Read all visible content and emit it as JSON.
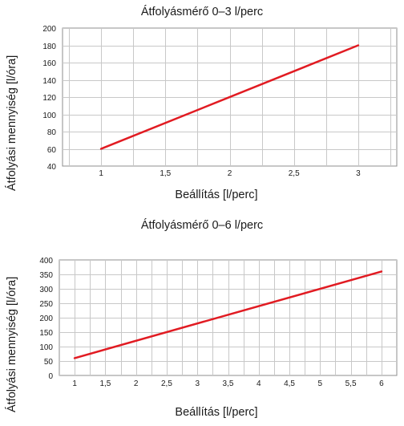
{
  "chart_data": [
    {
      "type": "line",
      "title": "Átfolyásmérő 0–3 l/perc",
      "xlabel": "Beállítás [l/perc]",
      "ylabel": "Átfolyási mennyiség [l/óra]",
      "x_ticks": [
        "1",
        "1,5",
        "2",
        "2,5",
        "3"
      ],
      "x_tick_values": [
        1,
        1.5,
        2,
        2.5,
        3
      ],
      "y_ticks": [
        "40",
        "60",
        "80",
        "100",
        "120",
        "140",
        "160",
        "180",
        "200"
      ],
      "y_tick_values": [
        40,
        60,
        80,
        100,
        120,
        140,
        160,
        180,
        200
      ],
      "xlim": [
        0.7,
        3.3
      ],
      "ylim": [
        40,
        200
      ],
      "x_minor_step": 0.25,
      "grid": true,
      "line_color": "#e11b22",
      "grid_color": "#c8c8c8",
      "series": [
        {
          "x": [
            1,
            3
          ],
          "y": [
            60,
            180
          ]
        }
      ]
    },
    {
      "type": "line",
      "title": "Átfolyásmérő 0–6 l/perc",
      "xlabel": "Beállítás [l/perc]",
      "ylabel": "Átfolyási mennyiség [l/óra]",
      "x_ticks": [
        "1",
        "1,5",
        "2",
        "2,5",
        "3",
        "3,5",
        "4",
        "4,5",
        "5",
        "5,5",
        "6"
      ],
      "x_tick_values": [
        1,
        1.5,
        2,
        2.5,
        3,
        3.5,
        4,
        4.5,
        5,
        5.5,
        6
      ],
      "y_ticks": [
        "0",
        "50",
        "100",
        "150",
        "200",
        "250",
        "300",
        "350",
        "400"
      ],
      "y_tick_values": [
        0,
        50,
        100,
        150,
        200,
        250,
        300,
        350,
        400
      ],
      "xlim": [
        0.75,
        6.25
      ],
      "ylim": [
        0,
        400
      ],
      "x_minor_step": 0.25,
      "grid": true,
      "line_color": "#e11b22",
      "grid_color": "#c8c8c8",
      "series": [
        {
          "x": [
            1,
            6
          ],
          "y": [
            60,
            360
          ]
        }
      ]
    }
  ]
}
